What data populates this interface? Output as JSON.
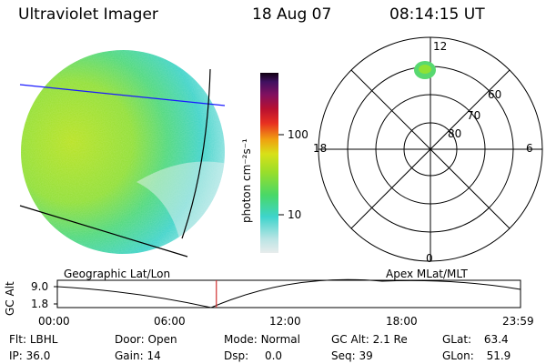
{
  "header": {
    "instrument": "Ultraviolet Imager",
    "date": "18 Aug 07",
    "time": "08:14:15 UT"
  },
  "colorbar": {
    "unit": "photon cm⁻²s⁻¹",
    "ticks": [
      "100",
      "10"
    ]
  },
  "polar": {
    "mlt_labels": {
      "top": "12",
      "left": "18",
      "right": "6",
      "bottom": "0"
    },
    "lat_labels": [
      "60",
      "70",
      "80"
    ]
  },
  "panels": {
    "left_label": "Geographic Lat/Lon",
    "right_label": "Apex MLat/MLT"
  },
  "altitude_plot": {
    "ylabel": "GC Alt",
    "yticks": [
      "9.0",
      "1.8"
    ],
    "xticks": [
      "00:00",
      "06:00",
      "12:00",
      "18:00",
      "23:59"
    ],
    "current_time_hours": 8.24,
    "marker_color": "#d03030"
  },
  "info": {
    "flt_label": "Flt:",
    "flt_value": "LBHL",
    "ip_label": "IP:",
    "ip_value": "36.0",
    "door_label": "Door:",
    "door_value": "Open",
    "gain_label": "Gain:",
    "gain_value": "14",
    "mode_label": "Mode:",
    "mode_value": "Normal",
    "dsp_label": "Dsp:",
    "dsp_value": "0.0",
    "gcalt_label": "GC Alt:",
    "gcalt_value": "2.1 Re",
    "seq_label": "Seq:",
    "seq_value": "39",
    "glat_label": "GLat:",
    "glat_value": "63.4",
    "glon_label": "GLon:",
    "glon_value": "51.9"
  }
}
